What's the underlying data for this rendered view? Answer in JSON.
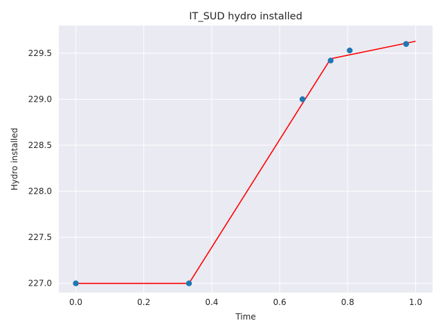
{
  "chart_data": {
    "type": "scatter",
    "title": "IT_SUD hydro installed",
    "xlabel": "Time",
    "ylabel": "Hydro installed",
    "xlim": [
      -0.05,
      1.05
    ],
    "ylim": [
      226.9,
      229.8
    ],
    "xticks": [
      0.0,
      0.2,
      0.4,
      0.6,
      0.8,
      1.0
    ],
    "xtick_labels": [
      "0.0",
      "0.2",
      "0.4",
      "0.6",
      "0.8",
      "1.0"
    ],
    "yticks": [
      227.0,
      227.5,
      228.0,
      228.5,
      229.0,
      229.5
    ],
    "ytick_labels": [
      "227.0",
      "227.5",
      "228.0",
      "228.5",
      "229.0",
      "229.5"
    ],
    "grid": true,
    "background": "#eaeaf2",
    "series": [
      {
        "kind": "scatter",
        "color": "#1f77b4",
        "x": [
          0.0,
          0.333,
          0.667,
          0.75,
          0.806,
          0.972
        ],
        "y": [
          227.0,
          227.0,
          229.0,
          229.42,
          229.53,
          229.6
        ]
      },
      {
        "kind": "line",
        "color": "#ff0000",
        "x": [
          0.0,
          0.333,
          0.75,
          1.0
        ],
        "y": [
          227.0,
          227.0,
          229.44,
          229.63
        ]
      }
    ]
  }
}
